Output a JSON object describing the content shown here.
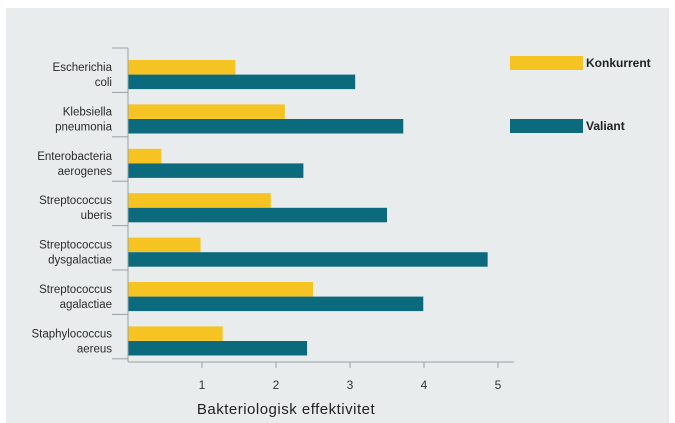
{
  "chart_data": {
    "type": "bar",
    "orientation": "horizontal",
    "categories": [
      [
        "Escherichia",
        "coli"
      ],
      [
        "Klebsiella",
        "pneumonia"
      ],
      [
        "Enterobacteria",
        "aerogenes"
      ],
      [
        "Streptococcus",
        "uberis"
      ],
      [
        "Streptococcus",
        "dysgalactiae"
      ],
      [
        "Streptococcus",
        "agalactiae"
      ],
      [
        "Staphylococcus",
        "aereus"
      ]
    ],
    "series": [
      {
        "name": "Konkurrent",
        "color": "#f5c423",
        "values": [
          1.45,
          2.12,
          0.45,
          1.93,
          0.98,
          2.5,
          1.28
        ]
      },
      {
        "name": "Valiant",
        "color": "#0b6a7c",
        "values": [
          3.07,
          3.72,
          2.37,
          3.5,
          4.86,
          3.99,
          2.42
        ]
      }
    ],
    "xticks": [
      1,
      2,
      3,
      4,
      5
    ],
    "xlim": [
      0,
      5.2
    ],
    "xlabel": "Bakteriologisk  effektivitet",
    "legend_position": "right",
    "grid": false
  }
}
